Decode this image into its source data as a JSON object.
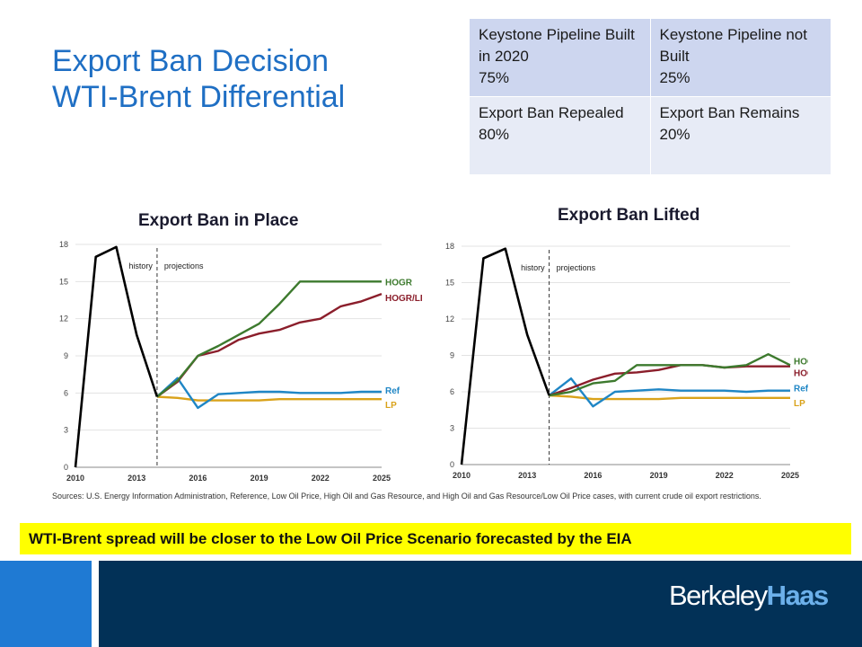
{
  "slide": {
    "title_line1": "Export Ban Decision",
    "title_line2": "WTI-Brent Differential",
    "sources": "Sources: U.S. Energy Information Administration, Reference, Low Oil Price, High Oil and Gas Resource, and High Oil and Gas Resource/Low Oil Price cases, with current crude oil export restrictions.",
    "banner": "WTI-Brent spread will be closer to the Low Oil Price Scenario forecasted by the EIA",
    "logo_part1": "Berkeley",
    "logo_part2": "Haas"
  },
  "probability_table": {
    "rows": [
      [
        "Keystone Pipeline Built in 2020",
        "75%",
        "Keystone Pipeline not Built",
        "25%"
      ],
      [
        "Export Ban Repealed",
        "80%",
        "Export Ban Remains",
        "20%"
      ]
    ]
  },
  "colors": {
    "title": "#1f6fc4",
    "HOGR": "#3d7a2e",
    "HOGR/LP": "#8b1e2b",
    "Ref": "#1f86c5",
    "LP": "#d9a21a",
    "history": "#000000",
    "banner": "#ffff00",
    "footer_left": "#1f7ad3",
    "footer_right": "#023157"
  },
  "chart_data": [
    {
      "type": "line",
      "title": "Export Ban in Place",
      "xlabel": "",
      "ylabel": "",
      "xlim": [
        2010,
        2025
      ],
      "ylim": [
        0,
        18
      ],
      "xticks": [
        2010,
        2013,
        2016,
        2019,
        2022,
        2025
      ],
      "yticks": [
        0,
        3,
        6,
        9,
        12,
        15,
        18
      ],
      "annotations": [
        "history",
        "projections"
      ],
      "divider_x": 2014,
      "history": {
        "x": [
          2010,
          2011,
          2012,
          2013,
          2014
        ],
        "y": [
          0,
          17,
          17.8,
          10.7,
          5.7
        ]
      },
      "series": [
        {
          "name": "HOGR",
          "x": [
            2014,
            2015,
            2016,
            2017,
            2018,
            2019,
            2020,
            2021,
            2022,
            2023,
            2024,
            2025
          ],
          "y": [
            5.7,
            7.0,
            9.0,
            9.8,
            10.7,
            11.6,
            13.2,
            15.0,
            15.0,
            15.0,
            15.0,
            15.0
          ]
        },
        {
          "name": "HOGR/LP",
          "x": [
            2014,
            2015,
            2016,
            2017,
            2018,
            2019,
            2020,
            2021,
            2022,
            2023,
            2024,
            2025
          ],
          "y": [
            5.7,
            6.9,
            9.0,
            9.4,
            10.3,
            10.8,
            11.1,
            11.7,
            12.0,
            13.0,
            13.4,
            14.0
          ]
        },
        {
          "name": "Ref",
          "x": [
            2014,
            2015,
            2016,
            2017,
            2018,
            2019,
            2020,
            2021,
            2022,
            2023,
            2024,
            2025
          ],
          "y": [
            5.7,
            7.2,
            4.8,
            5.9,
            6.0,
            6.1,
            6.1,
            6.0,
            6.0,
            6.0,
            6.1,
            6.1
          ]
        },
        {
          "name": "LP",
          "x": [
            2014,
            2015,
            2016,
            2017,
            2018,
            2019,
            2020,
            2021,
            2022,
            2023,
            2024,
            2025
          ],
          "y": [
            5.7,
            5.6,
            5.4,
            5.4,
            5.4,
            5.4,
            5.5,
            5.5,
            5.5,
            5.5,
            5.5,
            5.5
          ]
        }
      ]
    },
    {
      "type": "line",
      "title": "Export Ban  Lifted",
      "xlabel": "",
      "ylabel": "",
      "xlim": [
        2010,
        2025
      ],
      "ylim": [
        0,
        18
      ],
      "xticks": [
        2010,
        2013,
        2016,
        2019,
        2022,
        2025
      ],
      "yticks": [
        0,
        3,
        6,
        9,
        12,
        15,
        18
      ],
      "annotations": [
        "history",
        "projections"
      ],
      "divider_x": 2014,
      "history": {
        "x": [
          2010,
          2011,
          2012,
          2013,
          2014
        ],
        "y": [
          0,
          17,
          17.8,
          10.7,
          5.7
        ]
      },
      "series": [
        {
          "name": "HOGR",
          "x": [
            2014,
            2015,
            2016,
            2017,
            2018,
            2019,
            2020,
            2021,
            2022,
            2023,
            2024,
            2025
          ],
          "y": [
            5.7,
            6.0,
            6.7,
            6.9,
            8.2,
            8.2,
            8.2,
            8.2,
            8.0,
            8.2,
            9.1,
            8.2
          ]
        },
        {
          "name": "HOGR/LP",
          "x": [
            2014,
            2015,
            2016,
            2017,
            2018,
            2019,
            2020,
            2021,
            2022,
            2023,
            2024,
            2025
          ],
          "y": [
            5.7,
            6.3,
            7.0,
            7.5,
            7.6,
            7.8,
            8.2,
            8.2,
            8.0,
            8.1,
            8.1,
            8.1
          ]
        },
        {
          "name": "Ref",
          "x": [
            2014,
            2015,
            2016,
            2017,
            2018,
            2019,
            2020,
            2021,
            2022,
            2023,
            2024,
            2025
          ],
          "y": [
            5.7,
            7.1,
            4.8,
            6.0,
            6.1,
            6.2,
            6.1,
            6.1,
            6.1,
            6.0,
            6.1,
            6.1
          ]
        },
        {
          "name": "LP",
          "x": [
            2014,
            2015,
            2016,
            2017,
            2018,
            2019,
            2020,
            2021,
            2022,
            2023,
            2024,
            2025
          ],
          "y": [
            5.7,
            5.6,
            5.4,
            5.4,
            5.4,
            5.4,
            5.5,
            5.5,
            5.5,
            5.5,
            5.5,
            5.5
          ]
        }
      ]
    }
  ]
}
